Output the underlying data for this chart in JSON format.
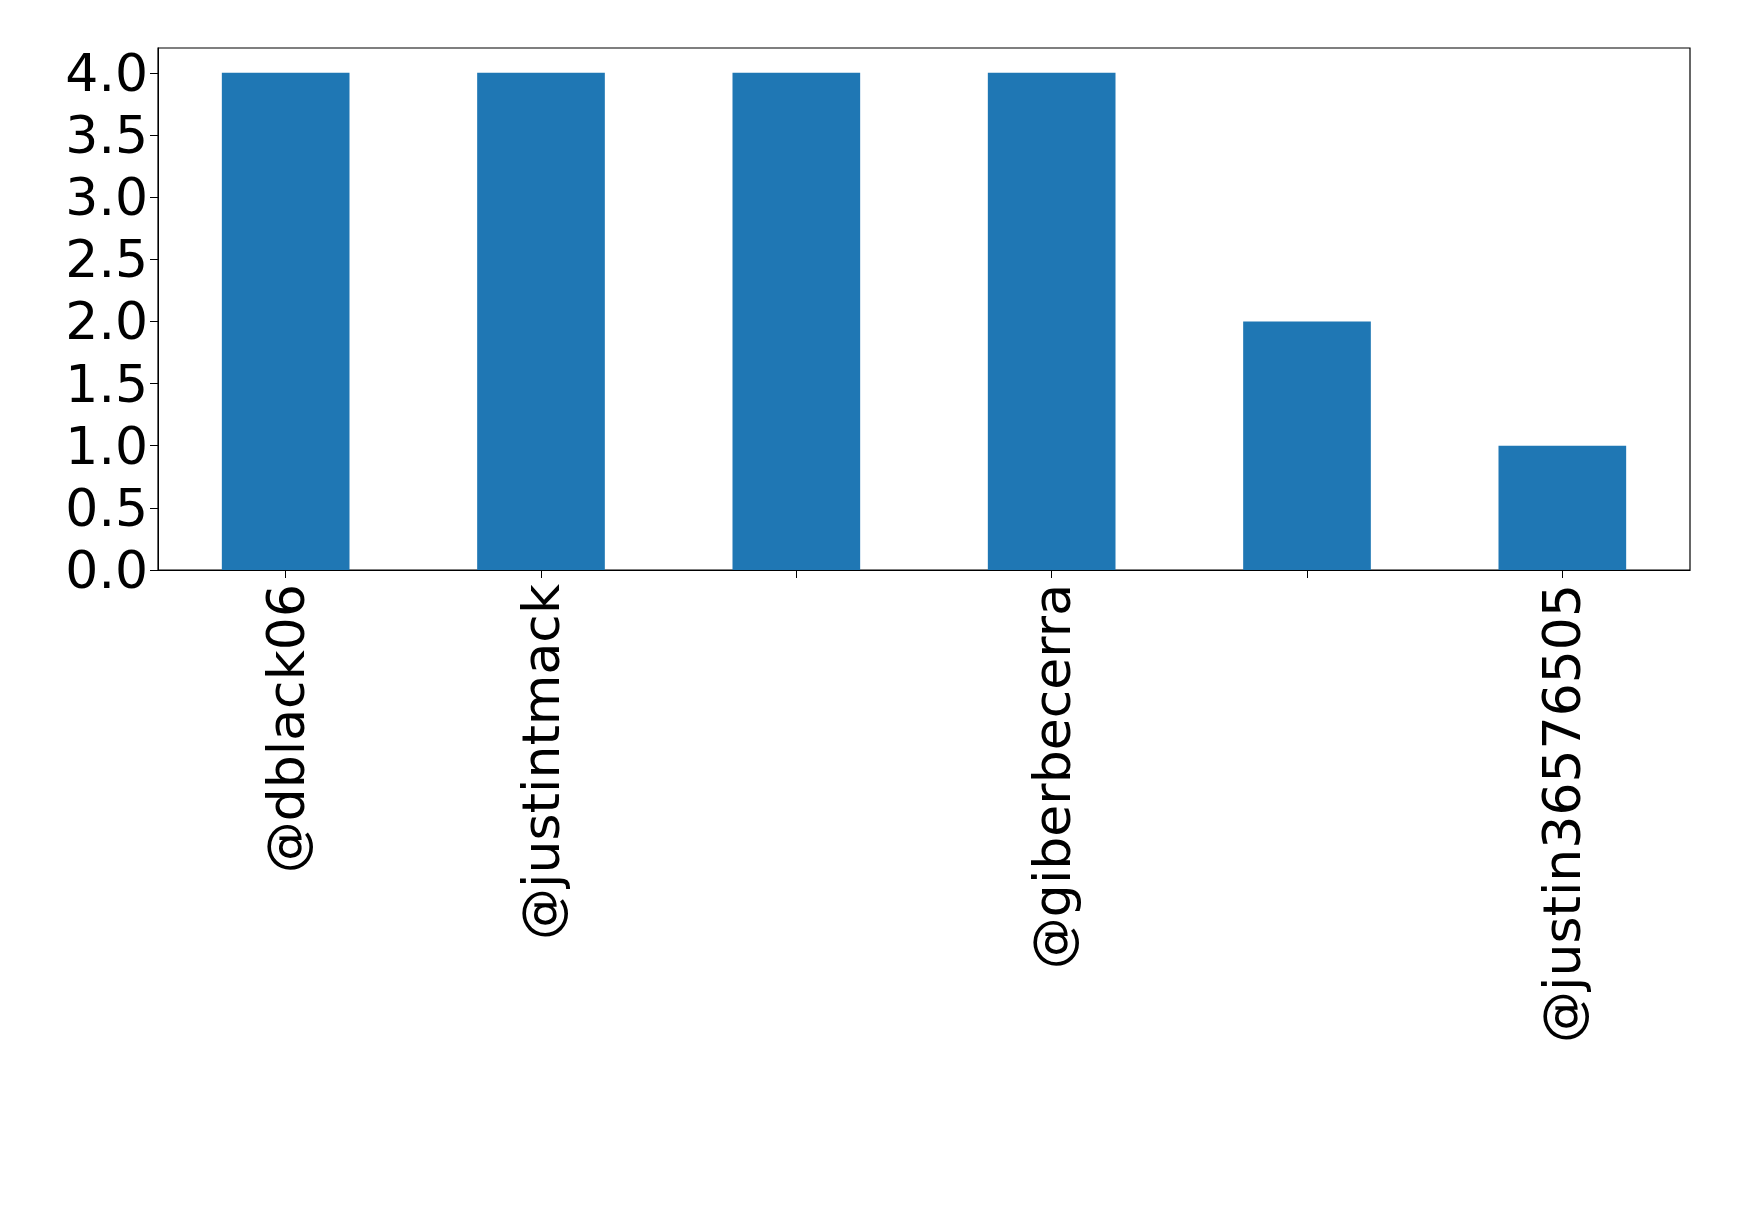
{
  "chart_data": {
    "type": "bar",
    "categories": [
      "@dblack06",
      "@justintmack",
      null,
      "@giberbecerra",
      null,
      "@justin36576505"
    ],
    "values": [
      4,
      4,
      4,
      4,
      2,
      1
    ],
    "color": "#1f77b4",
    "ylim": [
      0,
      4.2
    ],
    "yticks": [
      {
        "value": 0,
        "label": "0.0"
      },
      {
        "value": 0.5,
        "label": "0.5"
      },
      {
        "value": 1,
        "label": "1.0"
      },
      {
        "value": 1.5,
        "label": "1.5"
      },
      {
        "value": 2,
        "label": "2.0"
      },
      {
        "value": 2.5,
        "label": "2.5"
      },
      {
        "value": 3,
        "label": "3.0"
      },
      {
        "value": 3.5,
        "label": "3.5"
      },
      {
        "value": 4,
        "label": "4.0"
      }
    ],
    "grid": false
  }
}
